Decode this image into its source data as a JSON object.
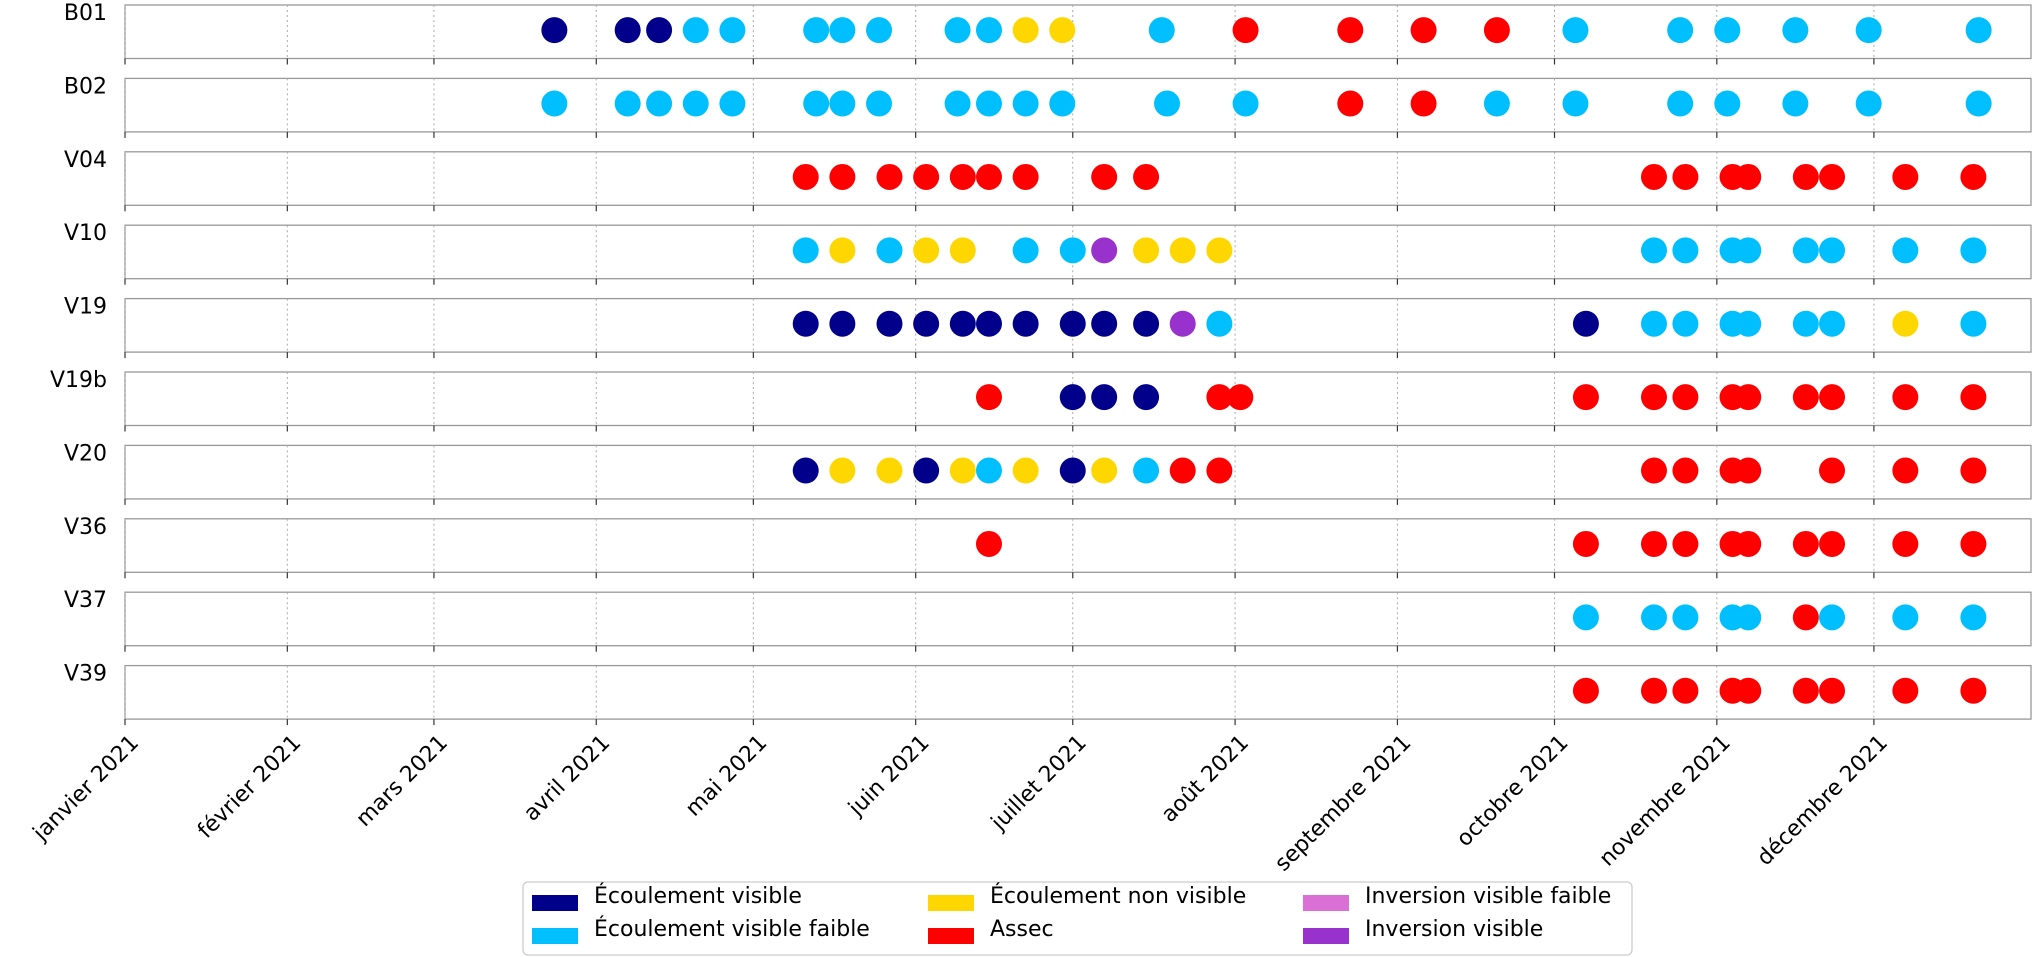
{
  "chart_data": {
    "type": "scatter",
    "categories": [
      "B01",
      "B02",
      "V04",
      "V10",
      "V19",
      "V19b",
      "V20",
      "V36",
      "V37",
      "V39"
    ],
    "xlim": [
      0,
      364
    ],
    "xticks": [
      {
        "value": 0,
        "label": "janvier 2021"
      },
      {
        "value": 31,
        "label": "février 2021"
      },
      {
        "value": 59,
        "label": "mars 2021"
      },
      {
        "value": 90,
        "label": "avril 2021"
      },
      {
        "value": 120,
        "label": "mai 2021"
      },
      {
        "value": 151,
        "label": "juin 2021"
      },
      {
        "value": 181,
        "label": "juillet 2021"
      },
      {
        "value": 212,
        "label": "août 2021"
      },
      {
        "value": 243,
        "label": "septembre 2021"
      },
      {
        "value": 273,
        "label": "octobre 2021"
      },
      {
        "value": 304,
        "label": "novembre 2021"
      },
      {
        "value": 334,
        "label": "décembre 2021"
      }
    ],
    "grid": true,
    "series": [
      {
        "name": "Écoulement visible",
        "color": "#00008b",
        "x": [
          82,
          96,
          102,
          130,
          137,
          146,
          153,
          160,
          165,
          172,
          181,
          187,
          195,
          279,
          181,
          187,
          195,
          130,
          153,
          181
        ],
        "station": [
          "B01",
          "B01",
          "B01",
          "V19",
          "V19",
          "V19",
          "V19",
          "V19",
          "V19",
          "V19",
          "V19",
          "V19",
          "V19",
          "V19",
          "V19b",
          "V19b",
          "V19b",
          "V20",
          "V20",
          "V20"
        ]
      },
      {
        "name": "Écoulement visible faible",
        "color": "#00bfff",
        "x": [
          109,
          116,
          132,
          137,
          144,
          159,
          165,
          198,
          277,
          297,
          306,
          319,
          333,
          354,
          82,
          96,
          102,
          109,
          116,
          132,
          137,
          144,
          159,
          165,
          172,
          179,
          199,
          214,
          262,
          277,
          297,
          306,
          319,
          333,
          354,
          130,
          146,
          172,
          181,
          292,
          298,
          307,
          310,
          321,
          326,
          340,
          353,
          209,
          292,
          298,
          307,
          310,
          321,
          326,
          353,
          165,
          195,
          279,
          292,
          298,
          307,
          310,
          326,
          340,
          353
        ],
        "station": [
          "B01",
          "B01",
          "B01",
          "B01",
          "B01",
          "B01",
          "B01",
          "B01",
          "B01",
          "B01",
          "B01",
          "B01",
          "B01",
          "B01",
          "B02",
          "B02",
          "B02",
          "B02",
          "B02",
          "B02",
          "B02",
          "B02",
          "B02",
          "B02",
          "B02",
          "B02",
          "B02",
          "B02",
          "B02",
          "B02",
          "B02",
          "B02",
          "B02",
          "B02",
          "B02",
          "V10",
          "V10",
          "V10",
          "V10",
          "V10",
          "V10",
          "V10",
          "V10",
          "V10",
          "V10",
          "V10",
          "V10",
          "V19",
          "V19",
          "V19",
          "V19",
          "V19",
          "V19",
          "V19",
          "V19",
          "V20",
          "V20",
          "V37",
          "V37",
          "V37",
          "V37",
          "V37",
          "V37",
          "V37",
          "V37"
        ]
      },
      {
        "name": "Écoulement non visible",
        "color": "#ffd700",
        "x": [
          172,
          179,
          137,
          153,
          160,
          195,
          202,
          209,
          340,
          137,
          146,
          160,
          172,
          187
        ],
        "station": [
          "B01",
          "B01",
          "V10",
          "V10",
          "V10",
          "V10",
          "V10",
          "V10",
          "V19",
          "V20",
          "V20",
          "V20",
          "V20",
          "V20"
        ]
      },
      {
        "name": "Assec",
        "color": "#ff0000",
        "x": [
          214,
          234,
          248,
          262,
          234,
          248,
          130,
          137,
          146,
          153,
          160,
          165,
          172,
          187,
          195,
          292,
          298,
          307,
          310,
          321,
          326,
          340,
          353,
          165,
          209,
          213,
          279,
          292,
          298,
          307,
          310,
          321,
          326,
          340,
          353,
          202,
          209,
          292,
          298,
          307,
          310,
          326,
          340,
          353,
          165,
          279,
          292,
          298,
          307,
          310,
          321,
          326,
          340,
          353,
          321,
          279,
          292,
          298,
          307,
          310,
          321,
          326,
          340,
          353
        ],
        "station": [
          "B01",
          "B01",
          "B01",
          "B01",
          "B02",
          "B02",
          "V04",
          "V04",
          "V04",
          "V04",
          "V04",
          "V04",
          "V04",
          "V04",
          "V04",
          "V04",
          "V04",
          "V04",
          "V04",
          "V04",
          "V04",
          "V04",
          "V04",
          "V19b",
          "V19b",
          "V19b",
          "V19b",
          "V19b",
          "V19b",
          "V19b",
          "V19b",
          "V19b",
          "V19b",
          "V19b",
          "V19b",
          "V20",
          "V20",
          "V20",
          "V20",
          "V20",
          "V20",
          "V20",
          "V20",
          "V20",
          "V36",
          "V36",
          "V36",
          "V36",
          "V36",
          "V36",
          "V36",
          "V36",
          "V36",
          "V36",
          "V37",
          "V39",
          "V39",
          "V39",
          "V39",
          "V39",
          "V39",
          "V39",
          "V39",
          "V39"
        ]
      },
      {
        "name": "Inversion visible faible",
        "color": "#da70d6",
        "x": [],
        "station": []
      },
      {
        "name": "Inversion visible",
        "color": "#9932cc",
        "x": [
          187,
          202
        ],
        "station": [
          "V10",
          "V19"
        ]
      }
    ]
  }
}
